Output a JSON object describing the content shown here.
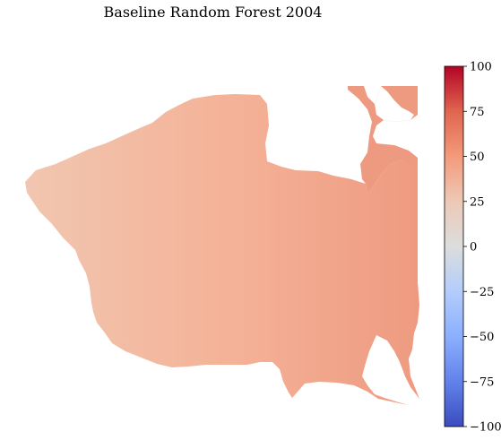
{
  "chart_data": {
    "type": "heatmap",
    "title": "Baseline Random Forest 2004",
    "colormap": "coolwarm",
    "colorbar": {
      "vmin": -100,
      "vmax": 100,
      "ticks": [
        100,
        75,
        50,
        25,
        0,
        -25,
        -50,
        -75,
        -100
      ],
      "tick_labels": [
        "100",
        "75",
        "50",
        "25",
        "0",
        "−25",
        "−50",
        "−75",
        "−100"
      ],
      "colors": {
        "100": "#b40426",
        "75": "#e0654f",
        "50": "#f49a7b",
        "25": "#edc9b6",
        "0": "#dcdddd",
        "-25": "#b3cdfb",
        "-50": "#8caffe",
        "-75": "#6282ea",
        "-100": "#3b4cc0"
      }
    },
    "map_value_range": [
      25,
      60
    ],
    "map_colors": {
      "west_low": "#f1c6b0",
      "center": "#f4b196",
      "east_high": "#ee9a80"
    }
  }
}
